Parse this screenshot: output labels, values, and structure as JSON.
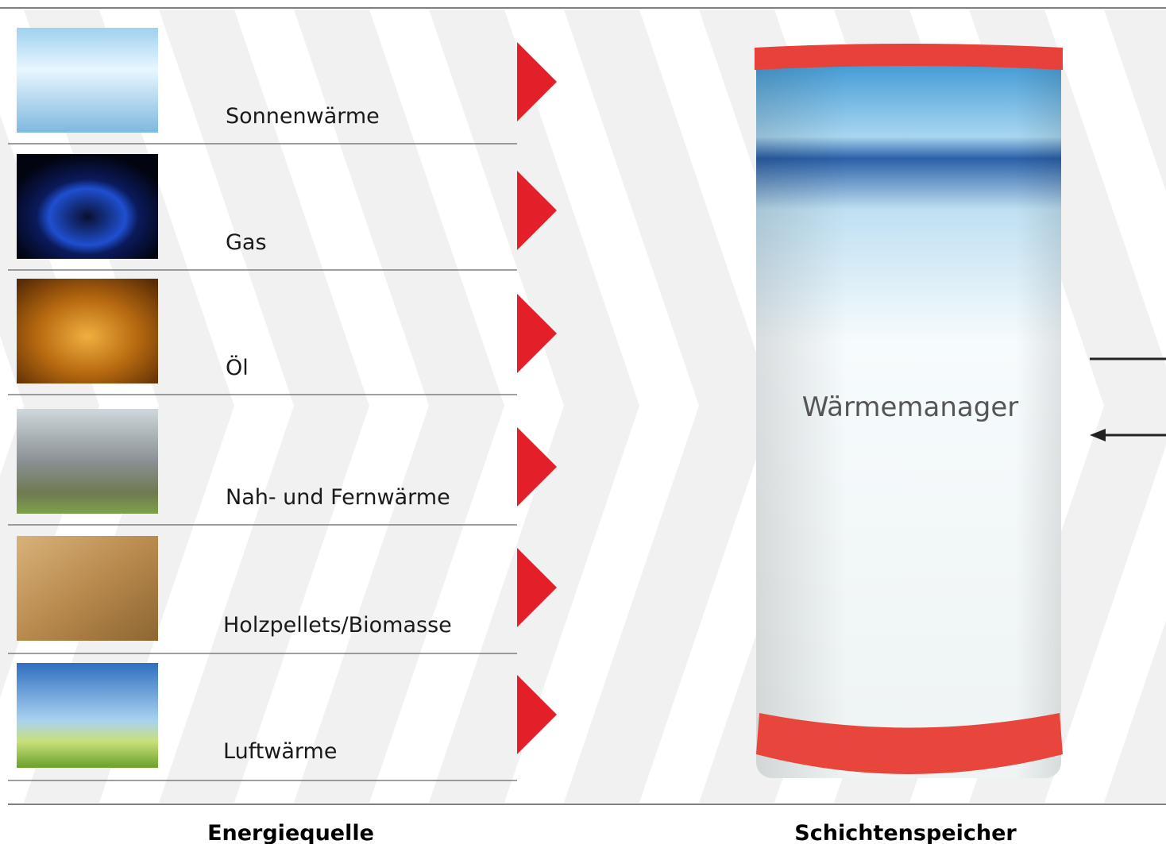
{
  "sources": [
    "Sonnenwärme",
    "Gas",
    "Öl",
    "Nah- und Fernwärme",
    "Holzpellets/Biomasse",
    "Luftwärme"
  ],
  "storage": {
    "label": "Wärmemanager"
  },
  "footer": {
    "left": "Energiequelle",
    "right": "Schichtenspeicher"
  }
}
